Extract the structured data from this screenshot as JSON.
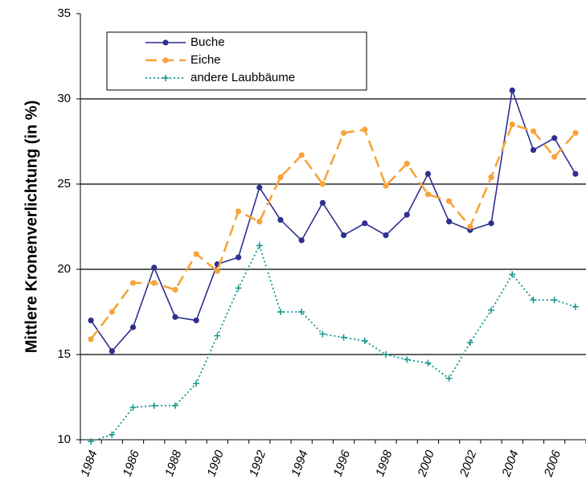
{
  "chart_data": {
    "type": "line",
    "y_label": "Mittlere Kronenverlichtung (in %)",
    "categories": [
      "1984",
      null,
      "1986",
      null,
      "1988",
      null,
      "1990",
      null,
      "1992",
      null,
      "1994",
      null,
      "1996",
      null,
      "1998",
      null,
      "2000",
      null,
      "2002",
      null,
      "2004",
      null,
      "2006",
      null
    ],
    "series": [
      {
        "name": "Buche",
        "color": "#2e2f8f",
        "marker": "circle",
        "dash": "solid",
        "values": [
          17.0,
          15.2,
          16.6,
          20.1,
          17.2,
          17.0,
          20.3,
          20.7,
          24.8,
          22.9,
          21.7,
          23.9,
          22.0,
          22.7,
          22.0,
          23.2,
          25.6,
          22.8,
          22.3,
          22.7,
          30.5,
          27.0,
          27.7,
          25.6
        ]
      },
      {
        "name": "Eiche",
        "color": "#f7a43a",
        "marker": "circle",
        "dash": "dashed",
        "values": [
          15.9,
          17.5,
          19.2,
          19.2,
          18.8,
          20.9,
          19.9,
          23.4,
          22.8,
          25.4,
          26.7,
          25.0,
          28.0,
          28.2,
          24.9,
          26.2,
          24.4,
          24.0,
          22.5,
          25.4,
          28.5,
          28.1,
          26.6,
          28.0
        ]
      },
      {
        "name": "andere Laubbäume",
        "color": "#14968c",
        "marker": "plus",
        "dash": "dotted",
        "values": [
          9.9,
          10.3,
          11.9,
          12.0,
          12.0,
          13.3,
          16.1,
          18.9,
          21.4,
          17.5,
          17.5,
          16.2,
          16.0,
          15.8,
          15.0,
          14.7,
          14.5,
          13.6,
          15.7,
          17.6,
          19.7,
          18.2,
          18.2,
          17.8
        ]
      }
    ],
    "ylim": [
      10,
      35
    ],
    "yticks": [
      10,
      15,
      20,
      25,
      30,
      35
    ],
    "grid": true,
    "legend": "top-left"
  }
}
